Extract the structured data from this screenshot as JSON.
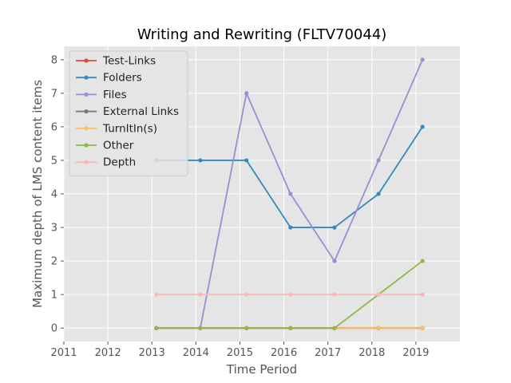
{
  "chart_data": {
    "type": "line",
    "title": "Writing and Rewriting (FLTV70044)",
    "xlabel": "Time Period",
    "ylabel": "Maximum depth of LMS content items",
    "xlim": [
      2011,
      2020
    ],
    "ylim": [
      -0.4,
      8.4
    ],
    "xticks": [
      "2011",
      "2012",
      "2013",
      "2014",
      "2015",
      "2016",
      "2017",
      "2018",
      "2019"
    ],
    "yticks": [
      "0",
      "1",
      "2",
      "3",
      "4",
      "5",
      "6",
      "7",
      "8"
    ],
    "grid": true,
    "legend_position": "top-left",
    "x": [
      2013.1,
      2014.1,
      2015.15,
      2016.15,
      2017.15,
      2018.15,
      2019.15
    ],
    "series": [
      {
        "name": "Test-Links",
        "color": "#e24a33",
        "values": [
          0,
          0,
          0,
          0,
          0,
          0,
          0
        ]
      },
      {
        "name": "Folders",
        "color": "#348abd",
        "values": [
          5,
          5,
          5,
          3,
          3,
          4,
          6
        ]
      },
      {
        "name": "Files",
        "color": "#988ed5",
        "values": [
          null,
          0,
          7,
          4,
          2,
          5,
          8
        ]
      },
      {
        "name": "External Links",
        "color": "#777777",
        "values": [
          0,
          0,
          0,
          0,
          0,
          0,
          0
        ]
      },
      {
        "name": "TurnItIn(s)",
        "color": "#fbc15e",
        "values": [
          null,
          null,
          null,
          null,
          0,
          0,
          0
        ]
      },
      {
        "name": "Other",
        "color": "#8eba42",
        "values": [
          0,
          0,
          0,
          0,
          0,
          1,
          2
        ]
      },
      {
        "name": "Depth",
        "color": "#ffb5b8",
        "values": [
          1,
          1,
          1,
          1,
          1,
          1,
          1
        ]
      }
    ]
  }
}
